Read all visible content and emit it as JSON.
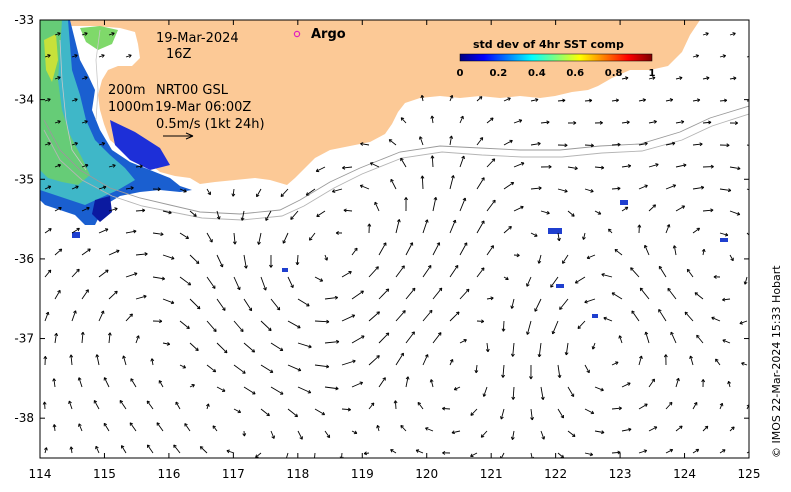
{
  "map": {
    "lon_range": [
      114,
      125
    ],
    "lat_range": [
      -38.5,
      -33
    ],
    "lon_ticks": [
      "114",
      "115",
      "116",
      "117",
      "118",
      "119",
      "120",
      "121",
      "122",
      "123",
      "124",
      "125"
    ],
    "lat_ticks": [
      "-33",
      "-34",
      "-35",
      "-36",
      "-37",
      "-38"
    ],
    "land_color": "#fcc996",
    "ocean_color": "#ffffff"
  },
  "annotations": {
    "date": "19-Mar-2024",
    "hour": "16Z",
    "depth_200": "200m",
    "depth_1000": "1000m",
    "product": "NRT00 GSL",
    "obs_time": "19-Mar 06:00Z",
    "velocity_scale": "0.5m/s (1kt 24h)"
  },
  "legend": {
    "argo_label": "Argo",
    "argo_color": "#e020c0"
  },
  "colorbar": {
    "title": "std dev of 4hr SST comp",
    "ticks": [
      "0",
      "0.2",
      "0.4",
      "0.6",
      "0.8",
      "1"
    ],
    "colors": [
      "#00007f",
      "#0000ff",
      "#007fff",
      "#00ffff",
      "#7fff7f",
      "#ffff00",
      "#ff7f00",
      "#ff0000",
      "#7f0000"
    ]
  },
  "credit": "© IMOS 22-Mar-2024 15:33 Hobart"
}
